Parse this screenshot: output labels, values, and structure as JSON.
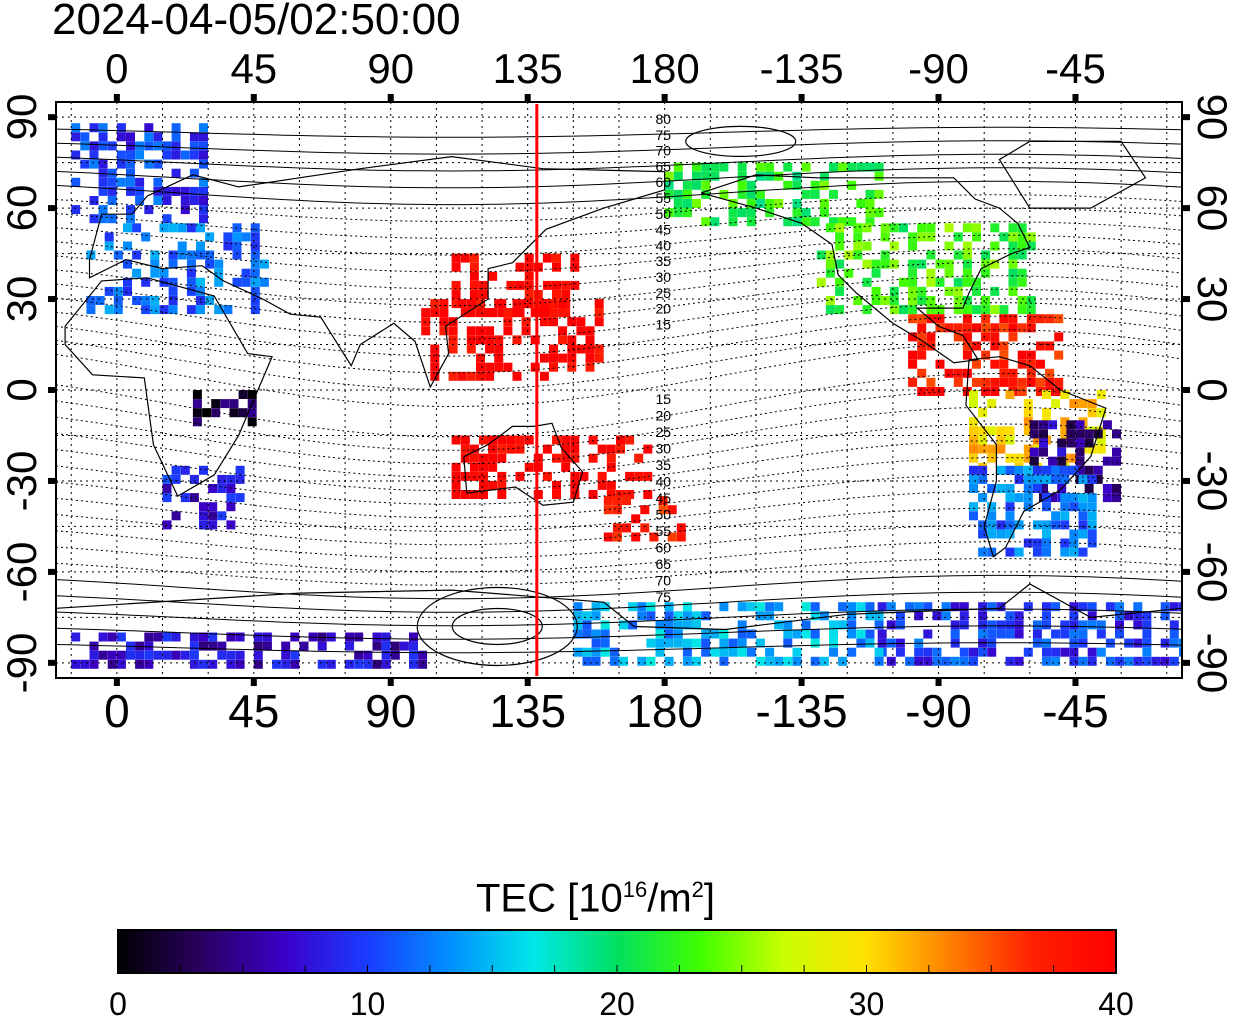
{
  "timestamp": "2024-04-05/02:50:00",
  "axes": {
    "lon_ticks": [
      "0",
      "45",
      "90",
      "135",
      "180",
      "-135",
      "-90",
      "-45"
    ],
    "lon_values": [
      0,
      45,
      90,
      135,
      180,
      225,
      270,
      315
    ],
    "lon_range": [
      -20,
      350
    ],
    "lat_ticks": [
      "90",
      "60",
      "30",
      "0",
      "-30",
      "-60",
      "-90"
    ],
    "lat_values": [
      90,
      60,
      30,
      0,
      -30,
      -60,
      -90
    ],
    "lat_range": [
      -95,
      95
    ],
    "grid": true
  },
  "map": {
    "terminator_longitude": 138,
    "terminator_color": "#ff0000",
    "contour_labels_north": [
      "80",
      "75",
      "70",
      "65",
      "60",
      "55",
      "50",
      "45",
      "40",
      "35",
      "30",
      "25",
      "20",
      "15"
    ],
    "contour_labels_south": [
      "15",
      "20",
      "25",
      "30",
      "35",
      "40",
      "45",
      "50",
      "55",
      "60",
      "65",
      "70",
      "75"
    ]
  },
  "colorbar": {
    "title_main": "TEC  [10",
    "title_exp": "16",
    "title_unit": "/m",
    "title_exp2": "2",
    "title_end": "]",
    "min": 0,
    "max": 40,
    "ticks": [
      "0",
      "10",
      "20",
      "30",
      "40"
    ],
    "colors": [
      "#000000",
      "#2a0060",
      "#3b00c8",
      "#1a3cff",
      "#0090ff",
      "#00e8e8",
      "#00e060",
      "#40ff00",
      "#c8ff00",
      "#ffe000",
      "#ff8000",
      "#ff2000",
      "#ff0000"
    ]
  },
  "chart_data": {
    "type": "heatmap",
    "variable": "TEC",
    "regions": [
      {
        "lon": [
          -15,
          30
        ],
        "lat": [
          55,
          88
        ],
        "tec": 10
      },
      {
        "lon": [
          -10,
          50
        ],
        "lat": [
          25,
          55
        ],
        "tec": 12
      },
      {
        "lon": [
          15,
          40
        ],
        "lat": [
          -45,
          -25
        ],
        "tec": 8
      },
      {
        "lon": [
          25,
          45
        ],
        "lat": [
          -10,
          0
        ],
        "tec": 2
      },
      {
        "lon": [
          110,
          150
        ],
        "lat": [
          25,
          45
        ],
        "tec": 40
      },
      {
        "lon": [
          100,
          160
        ],
        "lat": [
          5,
          30
        ],
        "tec": 40
      },
      {
        "lon": [
          110,
          175
        ],
        "lat": [
          -35,
          -15
        ],
        "tec": 40
      },
      {
        "lon": [
          160,
          185
        ],
        "lat": [
          -50,
          -35
        ],
        "tec": 38
      },
      {
        "lon": [
          180,
          250
        ],
        "lat": [
          55,
          75
        ],
        "tec": 22
      },
      {
        "lon": [
          230,
          300
        ],
        "lat": [
          25,
          55
        ],
        "tec": 23
      },
      {
        "lon": [
          260,
          310
        ],
        "lat": [
          0,
          25
        ],
        "tec": 38
      },
      {
        "lon": [
          280,
          325
        ],
        "lat": [
          -25,
          0
        ],
        "tec": 30
      },
      {
        "lon": [
          300,
          330
        ],
        "lat": [
          -35,
          -10
        ],
        "tec": 5
      },
      {
        "lon": [
          280,
          320
        ],
        "lat": [
          -55,
          -25
        ],
        "tec": 12
      },
      {
        "lon": [
          250,
          350
        ],
        "lat": [
          -90,
          -70
        ],
        "tec": 10
      },
      {
        "lon": [
          150,
          250
        ],
        "lat": [
          -90,
          -70
        ],
        "tec": 14
      },
      {
        "lon": [
          -15,
          100
        ],
        "lat": [
          -90,
          -80
        ],
        "tec": 7
      }
    ]
  }
}
